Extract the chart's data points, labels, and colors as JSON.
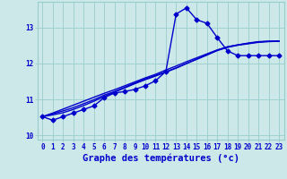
{
  "x": [
    0,
    1,
    2,
    3,
    4,
    5,
    6,
    7,
    8,
    9,
    10,
    11,
    12,
    13,
    14,
    15,
    16,
    17,
    18,
    19,
    20,
    21,
    22,
    23
  ],
  "y_main": [
    10.52,
    10.42,
    10.52,
    10.62,
    10.72,
    10.82,
    11.05,
    11.18,
    11.22,
    11.28,
    11.38,
    11.52,
    11.78,
    13.38,
    13.55,
    13.22,
    13.12,
    12.72,
    12.35,
    12.22,
    12.22,
    12.22,
    12.22,
    12.22
  ],
  "y_reg1": [
    10.52,
    10.62,
    10.73,
    10.84,
    10.95,
    11.06,
    11.17,
    11.27,
    11.38,
    11.49,
    11.6,
    11.7,
    11.82,
    11.93,
    12.05,
    12.16,
    12.27,
    12.38,
    12.46,
    12.52,
    12.56,
    12.6,
    12.62,
    12.63
  ],
  "y_reg2": [
    10.52,
    10.6,
    10.68,
    10.77,
    10.88,
    10.99,
    11.12,
    11.22,
    11.34,
    11.46,
    11.57,
    11.67,
    11.77,
    11.88,
    12.0,
    12.12,
    12.24,
    12.36,
    12.45,
    12.51,
    12.55,
    12.59,
    12.61,
    12.62
  ],
  "y_reg3": [
    10.52,
    10.57,
    10.63,
    10.72,
    10.83,
    10.95,
    11.08,
    11.2,
    11.32,
    11.44,
    11.55,
    11.65,
    11.76,
    11.87,
    12.0,
    12.12,
    12.24,
    12.37,
    12.47,
    12.52,
    12.57,
    12.61,
    12.62,
    12.62
  ],
  "xlim": [
    -0.5,
    23.5
  ],
  "ylim": [
    9.88,
    13.72
  ],
  "yticks": [
    10,
    11,
    12,
    13
  ],
  "xticks": [
    0,
    1,
    2,
    3,
    4,
    5,
    6,
    7,
    8,
    9,
    10,
    11,
    12,
    13,
    14,
    15,
    16,
    17,
    18,
    19,
    20,
    21,
    22,
    23
  ],
  "xlabel": "Graphe des températures (°c)",
  "line_color": "#0000cc",
  "bg_color": "#cce8e8",
  "grid_color": "#99cccc",
  "tick_label_color": "#0000cc",
  "xlabel_color": "#0000cc",
  "marker": "D",
  "marker_size": 2.5,
  "line_width": 1.0,
  "tick_fontsize": 5.5,
  "xlabel_fontsize": 7.5
}
